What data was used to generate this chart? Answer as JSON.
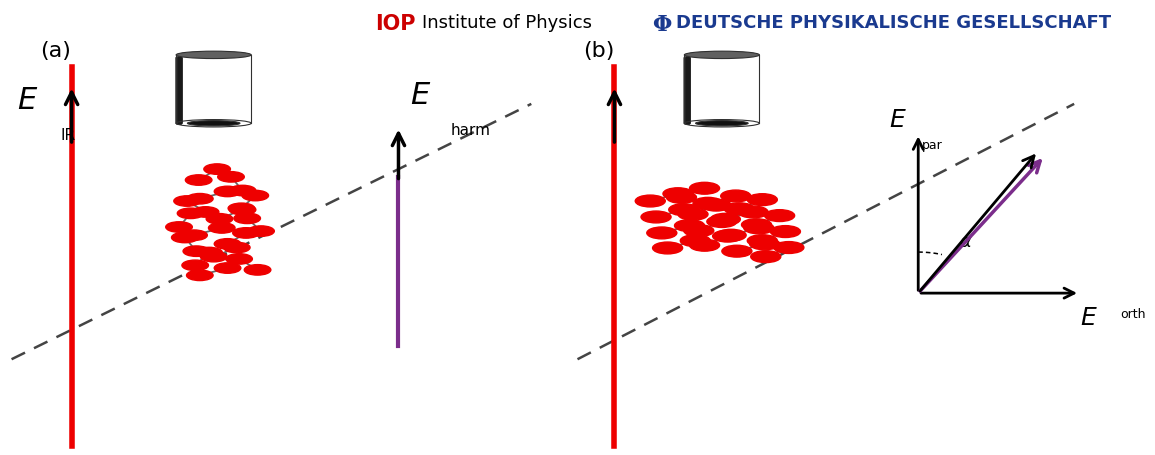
{
  "fig_width": 11.55,
  "fig_height": 4.56,
  "dpi": 100,
  "bg_color": "#ffffff",
  "header_iop_text": "IOP",
  "header_iop_color": "#cc0000",
  "header_institute_text": " Institute of Physics",
  "header_dpg_phi": "Φ",
  "header_dpg_phi_color": "#1a3a8f",
  "header_dpg_text": "DEUTSCHE PHYSIKALISCHE GESELLSCHAFT",
  "header_dpg_color": "#1a3a8f",
  "header_fontsize": 13,
  "panel_a_label": "(a)",
  "panel_b_label": "(b)",
  "label_fontsize": 15,
  "red_color": "#ee0000",
  "purple_color": "#7b2d8b",
  "black_color": "#000000",
  "dashed_color": "#555555",
  "molecule_red": "#ee0000",
  "molecule_bond": "#666666"
}
